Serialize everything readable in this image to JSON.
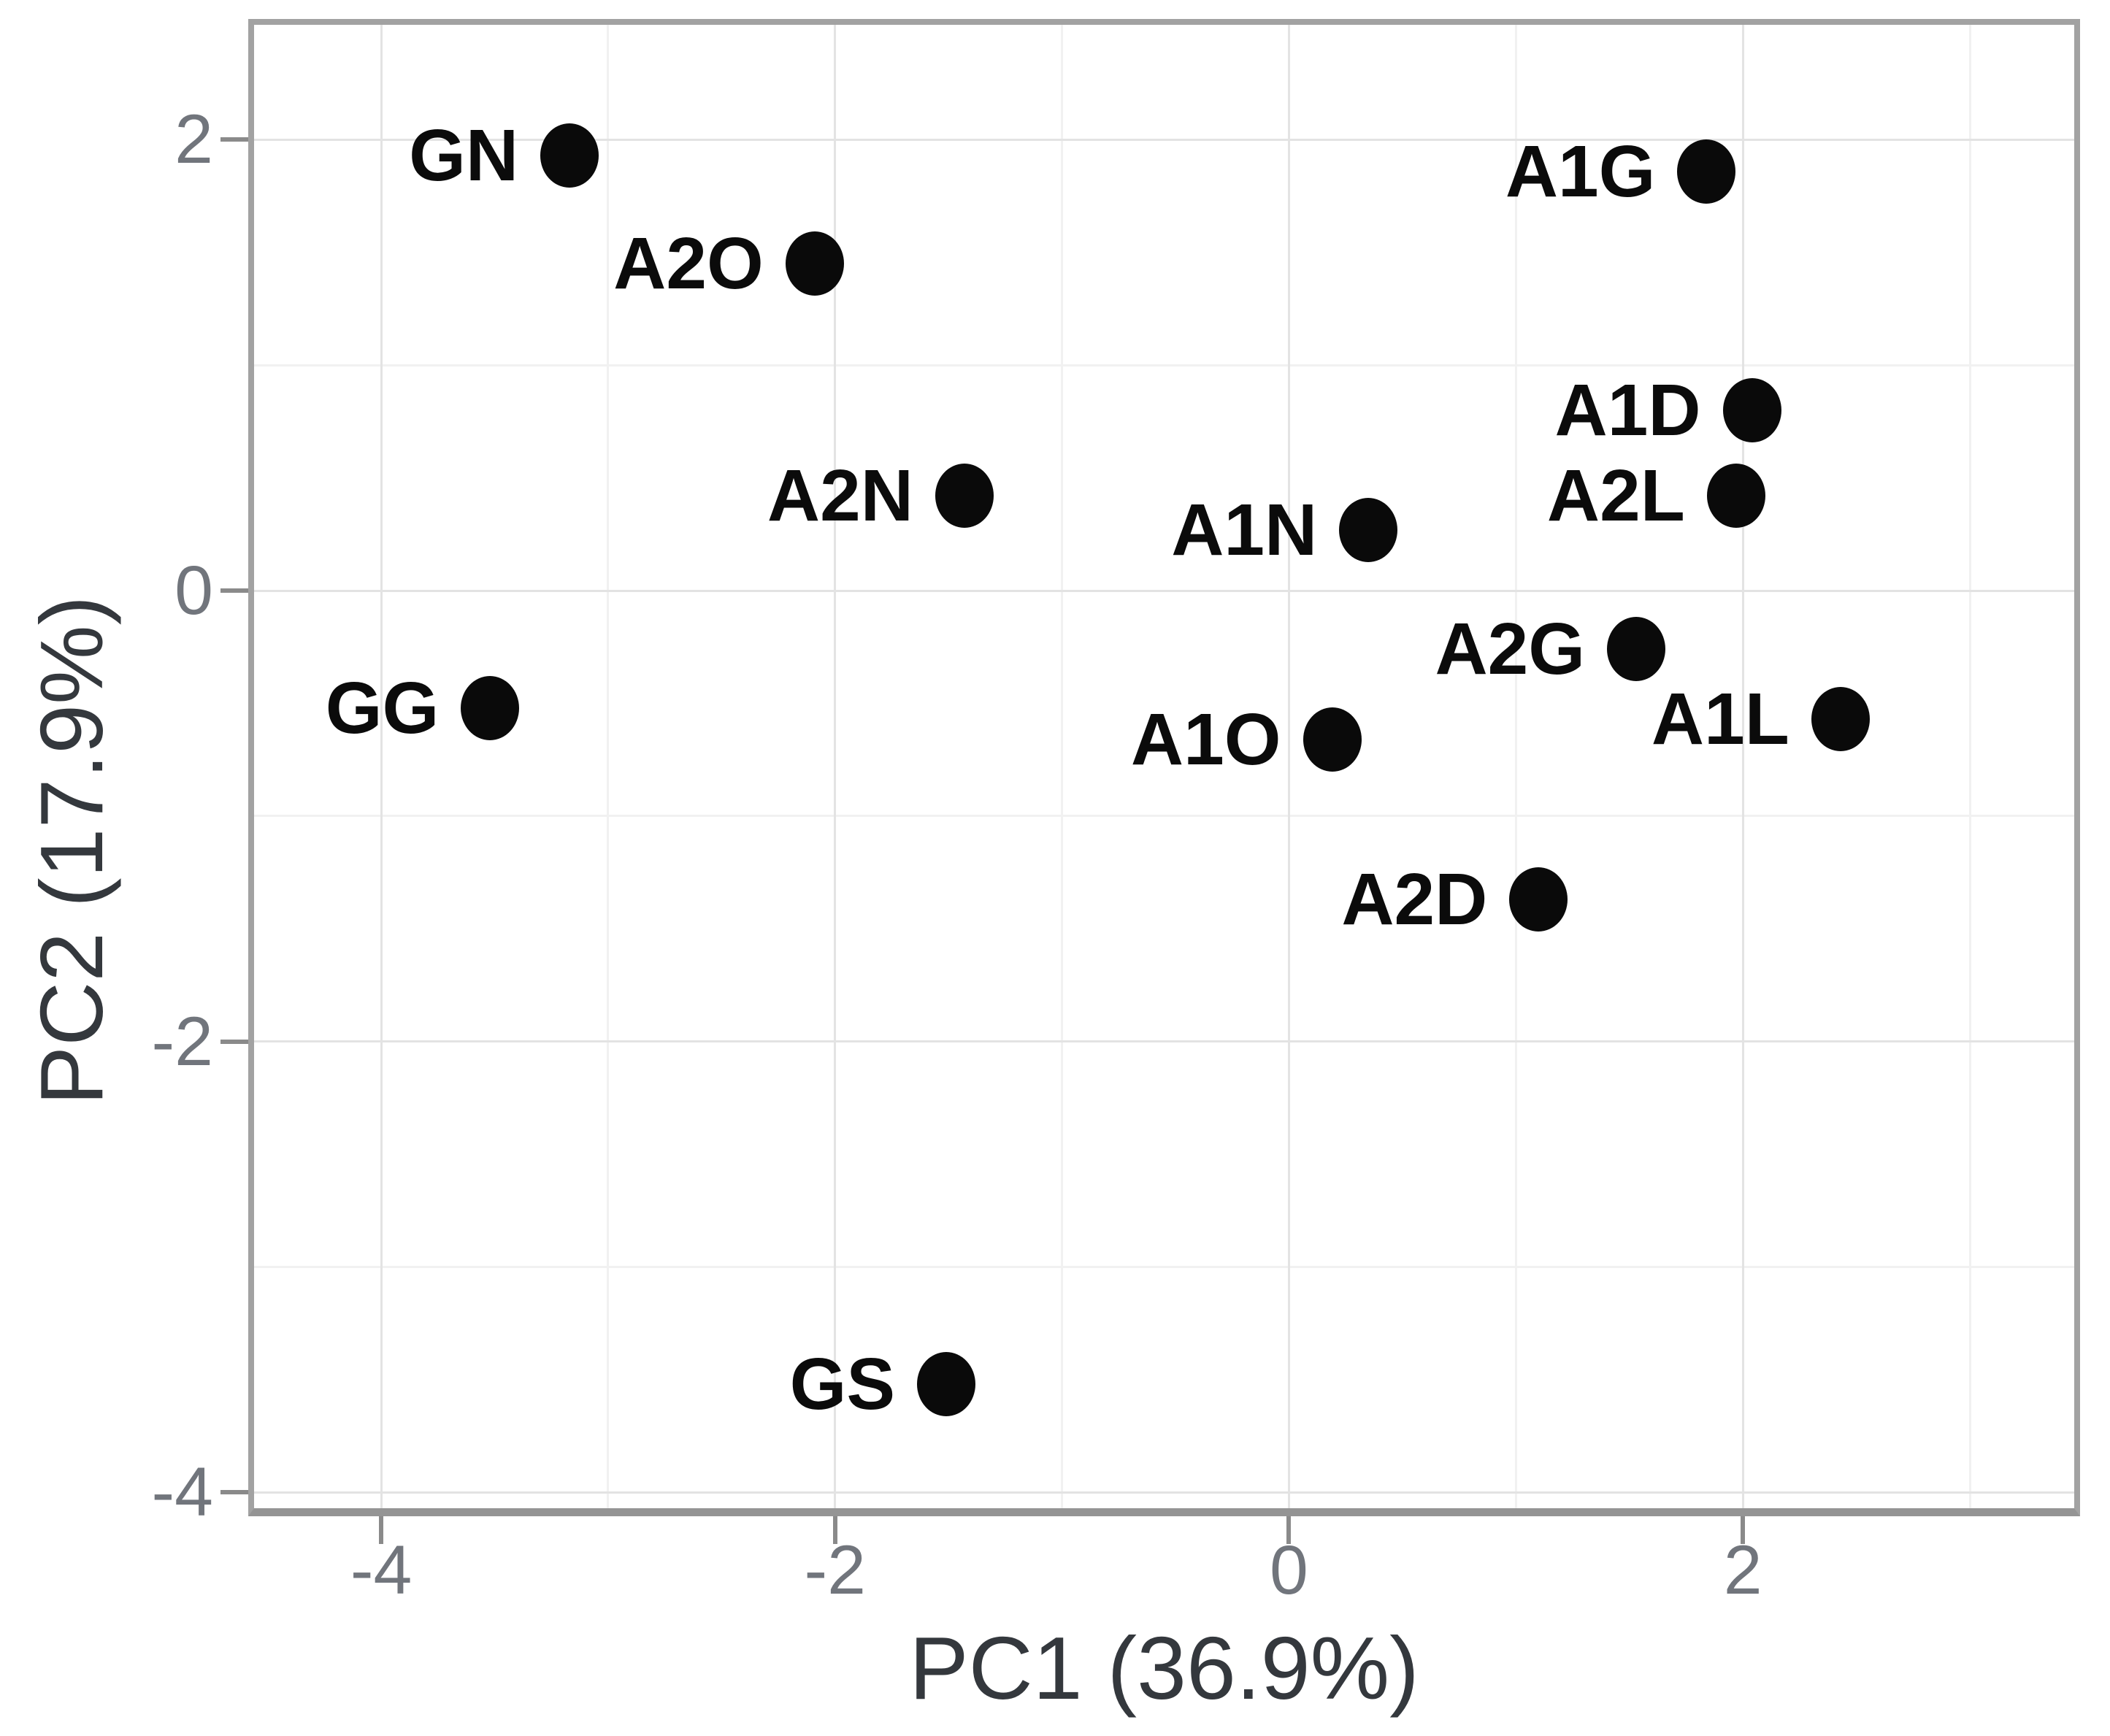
{
  "figure": {
    "background": "#ffffff",
    "panel_border_color": "#a2a2a2",
    "axis_line_color": "#949494",
    "grid_major_color": "#e3e3e3",
    "grid_minor_color": "#f1f1f1",
    "tick_color": "#8a8a8a",
    "tick_label_color": "#71757c",
    "axis_title_color": "#34383d",
    "point_color": "#0a0a0a",
    "point_label_color": "#0b0b0b"
  },
  "chart_data": {
    "type": "scatter",
    "title": "",
    "xlabel": "PC1 (36.9%)",
    "ylabel": "PC2 (17.9%)",
    "xlim": [
      -4.56,
      3.46
    ],
    "ylim": [
      -4.07,
      2.51
    ],
    "x_major_ticks": [
      -4,
      -2,
      0,
      2
    ],
    "y_major_ticks": [
      2,
      0,
      -2,
      -4
    ],
    "x_tick_labels": [
      "-4",
      "-2",
      "0",
      "2"
    ],
    "y_tick_labels": [
      "2",
      "0",
      "-2",
      "-4"
    ],
    "x_minor_gridlines": [
      -3,
      -1,
      1,
      3
    ],
    "y_minor_gridlines": [
      1,
      -1,
      -3
    ],
    "grid": true,
    "legend": false,
    "points": [
      {
        "label": "GN",
        "x": -3.17,
        "y": 1.93
      },
      {
        "label": "A2O",
        "x": -2.09,
        "y": 1.45
      },
      {
        "label": "A1G",
        "x": 1.84,
        "y": 1.86
      },
      {
        "label": "A1D",
        "x": 2.04,
        "y": 0.8
      },
      {
        "label": "A2L",
        "x": 1.97,
        "y": 0.42
      },
      {
        "label": "A2N",
        "x": -1.43,
        "y": 0.42
      },
      {
        "label": "A1N",
        "x": 0.35,
        "y": 0.27
      },
      {
        "label": "A2G",
        "x": 1.53,
        "y": -0.26
      },
      {
        "label": "A1L",
        "x": 2.43,
        "y": -0.57
      },
      {
        "label": "GG",
        "x": -3.52,
        "y": -0.52
      },
      {
        "label": "A1O",
        "x": 0.19,
        "y": -0.66
      },
      {
        "label": "A2D",
        "x": 1.1,
        "y": -1.37
      },
      {
        "label": "GS",
        "x": -1.51,
        "y": -3.52
      }
    ]
  }
}
